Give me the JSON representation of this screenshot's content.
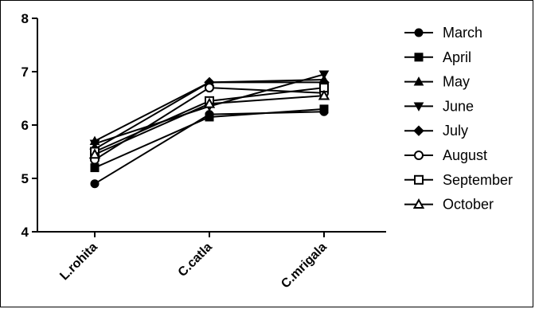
{
  "chart_data": {
    "type": "line",
    "categories": [
      "L.rohita",
      "C.catla",
      "C.mrigala"
    ],
    "ylim": [
      4,
      8
    ],
    "yticks": [
      4,
      5,
      6,
      7,
      8
    ],
    "grid": false,
    "legend_position": "right",
    "series": [
      {
        "name": "March",
        "marker": "circle",
        "values": [
          4.9,
          6.2,
          6.25
        ]
      },
      {
        "name": "April",
        "marker": "square",
        "values": [
          5.2,
          6.15,
          6.3
        ]
      },
      {
        "name": "May",
        "marker": "triangle-up",
        "values": [
          5.7,
          6.8,
          6.85
        ]
      },
      {
        "name": "June",
        "marker": "triangle-down",
        "values": [
          5.65,
          6.35,
          6.95
        ]
      },
      {
        "name": "July",
        "marker": "diamond",
        "values": [
          5.55,
          6.8,
          6.8
        ]
      },
      {
        "name": "August",
        "marker": "circle-open",
        "values": [
          5.35,
          6.7,
          6.6
        ]
      },
      {
        "name": "September",
        "marker": "square-open",
        "values": [
          5.5,
          6.45,
          6.7
        ]
      },
      {
        "name": "October",
        "marker": "triangle-open",
        "values": [
          5.45,
          6.4,
          6.55
        ]
      }
    ]
  }
}
